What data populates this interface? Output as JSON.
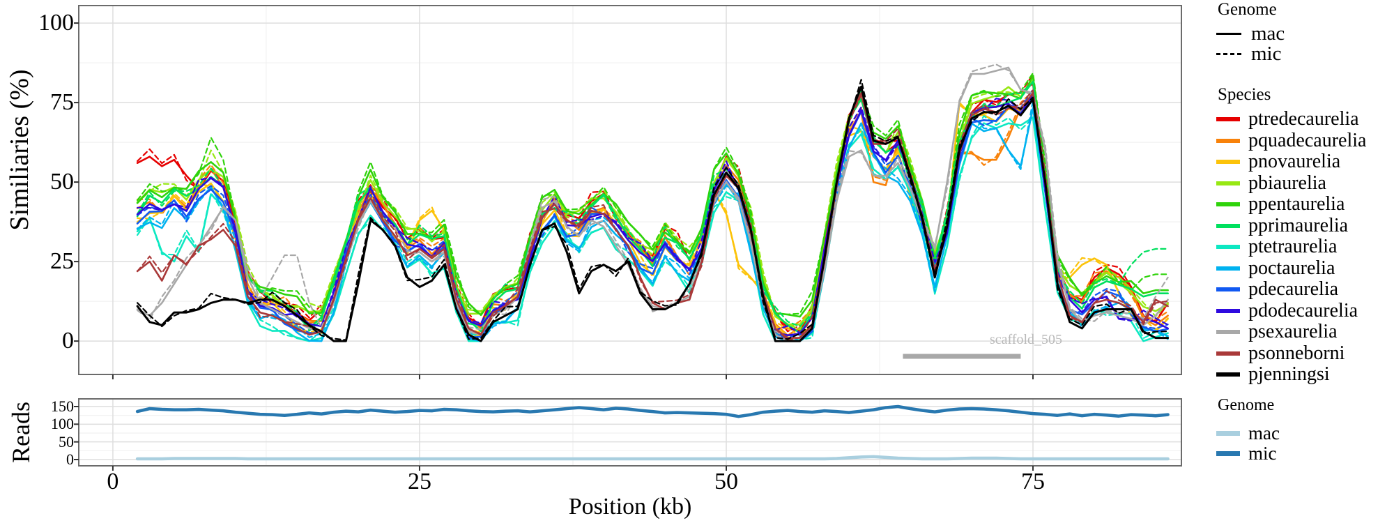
{
  "ui": {
    "y_axis_title": "Similiaries (%)",
    "reads_axis_title": "Reads",
    "x_axis_title": "Position (kb)",
    "scaffold_label": "scaffold_505",
    "legend_genome_top": {
      "title": "Genome",
      "items": [
        {
          "label": "mac",
          "linetype": "solid"
        },
        {
          "label": "mic",
          "linetype": "dashed"
        }
      ]
    },
    "legend_species_title": "Species",
    "legend_genome_bottom": {
      "title": "Genome",
      "items": [
        {
          "label": "mac",
          "color": "#a9cfdf"
        },
        {
          "label": "mic",
          "color": "#2878b0"
        }
      ]
    },
    "colors": {
      "grid_major": "#dedede",
      "grid_minor": "#f1f1f1",
      "panel_border": "#6b6b6b",
      "tick": "#333333",
      "scaffold_bar": "#a8a8a8",
      "scaffold_text": "#b9b9b9"
    }
  },
  "chart_data": [
    {
      "type": "line",
      "title": "",
      "xlabel": "Position (kb)",
      "ylabel": "Similiaries (%)",
      "xlim": [
        -2.78,
        87.1
      ],
      "ylim": [
        -10.5,
        105.5
      ],
      "x_major": [
        0,
        25,
        50,
        75
      ],
      "x_minor": [
        12.5,
        37.5,
        62.5
      ],
      "y_major": [
        0,
        25,
        50,
        75,
        100
      ],
      "y_minor": [
        12.5,
        37.5,
        62.5,
        87.5
      ],
      "y_tick_labels": [
        "100",
        "75",
        "50",
        "25",
        "0"
      ],
      "x_tick_labels": [
        "0",
        "25",
        "50",
        "75"
      ],
      "grid": true,
      "legend_position": "right",
      "x_start": 2,
      "x_step": 1,
      "n": 85,
      "base": [
        38,
        42,
        40,
        44,
        41,
        46,
        50,
        46,
        33,
        16,
        11,
        10,
        8,
        6,
        3,
        4,
        14,
        27,
        39,
        46,
        39,
        34,
        28,
        30,
        27,
        30,
        14,
        4,
        2,
        9,
        11,
        13,
        27,
        37,
        41,
        35,
        34,
        39,
        41,
        36,
        31,
        26,
        22,
        30,
        26,
        22,
        30,
        46,
        52,
        47,
        33,
        14,
        4,
        1,
        1,
        6,
        26,
        48,
        65,
        72,
        60,
        56,
        60,
        50,
        38,
        21,
        35,
        58,
        70,
        72,
        71,
        73,
        72,
        77,
        48,
        20,
        12,
        9,
        13,
        15,
        14,
        12,
        6,
        5,
        6
      ],
      "genomes": [
        {
          "name": "mac",
          "linetype": "solid"
        },
        {
          "name": "mic",
          "linetype": "dashed"
        }
      ],
      "series": [
        {
          "name": "ptredecaurelia",
          "color": "#e60000",
          "offset": 4,
          "mac_ov": {
            "2": 56,
            "3": 58,
            "4": 55,
            "5": 57,
            "6": 52,
            "50": 58,
            "61": 76,
            "80": 20,
            "81": 23,
            "82": 21,
            "83": 17,
            "84": 8,
            "85": 6,
            "86": 12
          }
        },
        {
          "name": "pquadecaurelia",
          "color": "#f8820a",
          "offset": 2,
          "mac_ov": {
            "62": 50,
            "63": 49,
            "70": 59,
            "71": 57,
            "72": 57,
            "73": 64,
            "80": 19,
            "81": 22,
            "82": 20,
            "83": 16,
            "84": 7,
            "85": 5,
            "86": 8
          }
        },
        {
          "name": "pnovaurelia",
          "color": "#fcc30a",
          "offset": 0,
          "mac_ov": {
            "25": 38,
            "26": 41,
            "27": 35,
            "49": 47,
            "50": 40,
            "51": 24,
            "52": 20,
            "61": 66,
            "62": 58,
            "63": 54,
            "64": 60,
            "65": 45,
            "69": 75,
            "78": 20,
            "79": 24,
            "80": 26,
            "81": 24,
            "82": 15,
            "83": 8,
            "84": 4,
            "85": 3,
            "86": 7
          }
        },
        {
          "name": "pbiaurelia",
          "color": "#97e813",
          "offset": 5,
          "mic_ov": {
            "8": 60
          }
        },
        {
          "name": "ppentaurelia",
          "color": "#2fd30b",
          "offset": 6,
          "mac_ov": {
            "84": 15,
            "85": 16,
            "86": 16
          },
          "mic_ov": {
            "8": 64,
            "9": 57,
            "83": 16,
            "84": 20,
            "85": 21,
            "86": 21
          }
        },
        {
          "name": "pprimaurelia",
          "color": "#00e05e",
          "offset": 3,
          "mac_ov": {
            "84": 14,
            "85": 15,
            "86": 15
          },
          "mic_ov": {
            "45": 36,
            "82": 18,
            "83": 24,
            "84": 28,
            "85": 29,
            "86": 29
          }
        },
        {
          "name": "ptetraurelia",
          "color": "#0de8c2",
          "offset": -5,
          "mac_ov": {
            "4": 28,
            "5": 25,
            "6": 33,
            "7": 28
          }
        },
        {
          "name": "poctaurelia",
          "color": "#00b2f0",
          "offset": -3,
          "mac_ov": {
            "63": 52,
            "64": 50,
            "65": 44,
            "71": 66,
            "72": 67,
            "73": 60,
            "74": 55
          }
        },
        {
          "name": "pdecaurelia",
          "color": "#1159f2",
          "offset": -1
        },
        {
          "name": "pdodecaurelia",
          "color": "#2e0adf",
          "offset": 1,
          "mac_ov": {
            "78": 13,
            "79": 9,
            "80": 13,
            "81": 14,
            "82": 7,
            "83": 7,
            "84": 7,
            "85": 6,
            "86": 4
          }
        },
        {
          "name": "psexaurelia",
          "color": "#a8a8a8",
          "values": [
            10,
            8,
            12,
            18,
            24,
            30,
            36,
            42,
            38,
            20,
            12,
            10,
            8,
            6,
            4,
            3,
            12,
            25,
            37,
            44,
            38,
            33,
            27,
            28,
            25,
            28,
            12,
            3,
            2,
            8,
            10,
            14,
            30,
            42,
            44,
            36,
            33,
            38,
            36,
            30,
            24,
            16,
            11,
            10,
            12,
            14,
            26,
            44,
            50,
            45,
            31,
            12,
            2,
            0,
            0,
            4,
            22,
            44,
            58,
            60,
            52,
            52,
            56,
            48,
            38,
            29,
            50,
            75,
            84,
            84,
            85,
            86,
            79,
            78,
            60,
            25,
            10,
            6,
            8,
            9,
            8,
            7,
            5,
            8,
            13
          ],
          "mic_ov": {
            "13": 20,
            "14": 27,
            "15": 27,
            "16": 12,
            "85": 14,
            "86": 20
          }
        },
        {
          "name": "psonneborni",
          "color": "#a93939",
          "values": [
            22,
            25,
            19,
            27,
            24,
            30,
            32,
            35,
            30,
            14,
            9,
            8,
            6,
            4,
            2,
            3,
            13,
            26,
            38,
            45,
            38,
            33,
            27,
            29,
            26,
            29,
            13,
            4,
            2,
            9,
            11,
            14,
            28,
            39,
            43,
            38,
            36,
            41,
            40,
            35,
            30,
            20,
            12,
            10,
            12,
            13,
            25,
            45,
            52,
            48,
            34,
            15,
            4,
            1,
            1,
            5,
            25,
            49,
            70,
            78,
            62,
            62,
            64,
            52,
            39,
            22,
            36,
            59,
            71,
            73,
            72,
            74,
            73,
            78,
            50,
            21,
            8,
            6,
            12,
            13,
            12,
            10,
            6,
            13,
            11
          ]
        },
        {
          "name": "pjenningsi",
          "color": "#000000",
          "values": [
            11,
            6,
            5,
            9,
            9,
            10,
            12,
            13,
            13,
            12,
            13,
            13,
            11,
            8,
            5,
            3,
            0,
            0,
            18,
            38,
            35,
            30,
            20,
            17,
            19,
            24,
            10,
            2,
            0,
            6,
            8,
            10,
            24,
            35,
            37,
            28,
            15,
            22,
            24,
            22,
            25,
            15,
            10,
            10,
            12,
            18,
            28,
            46,
            53,
            48,
            35,
            14,
            0,
            0,
            0,
            4,
            26,
            50,
            70,
            80,
            63,
            62,
            64,
            52,
            38,
            20,
            36,
            60,
            70,
            72,
            72,
            74,
            71,
            76,
            50,
            18,
            6,
            4,
            9,
            10,
            10,
            10,
            3,
            1,
            1
          ]
        }
      ],
      "annotation": {
        "label": "scaffold_505",
        "bar_x1": 64.4,
        "bar_x2": 74.0,
        "bar_y": -4.8,
        "label_x": 74.4,
        "label_y": -1.5
      }
    },
    {
      "type": "line",
      "ylabel": "Reads",
      "xlim": [
        -2.78,
        87.1
      ],
      "ylim": [
        -17.8,
        171.7
      ],
      "y_major": [
        0,
        50,
        100,
        150
      ],
      "y_minor": [
        25,
        75,
        125
      ],
      "y_tick_labels": [
        "150",
        "100",
        "50",
        "0"
      ],
      "grid": true,
      "x_start": 2,
      "x_step": 1,
      "n": 85,
      "series": [
        {
          "name": "mic",
          "color": "#2878b0",
          "values": [
            136,
            144,
            142,
            141,
            141,
            142,
            140,
            138,
            134,
            131,
            128,
            127,
            125,
            128,
            132,
            129,
            134,
            137,
            135,
            140,
            137,
            134,
            136,
            139,
            138,
            142,
            141,
            138,
            136,
            135,
            137,
            138,
            135,
            138,
            141,
            144,
            147,
            144,
            141,
            145,
            143,
            139,
            136,
            132,
            133,
            132,
            131,
            130,
            128,
            122,
            127,
            134,
            137,
            139,
            136,
            134,
            138,
            136,
            133,
            137,
            141,
            147,
            150,
            144,
            139,
            135,
            140,
            143,
            144,
            143,
            141,
            138,
            134,
            130,
            128,
            125,
            129,
            124,
            128,
            126,
            123,
            127,
            126,
            124,
            127
          ]
        },
        {
          "name": "mac",
          "color": "#a9cfdf",
          "values": [
            2,
            2,
            2,
            3,
            3,
            3,
            3,
            3,
            3,
            2,
            2,
            2,
            2,
            2,
            2,
            2,
            2,
            2,
            2,
            2,
            2,
            2,
            2,
            2,
            2,
            2,
            2,
            2,
            2,
            2,
            2,
            2,
            2,
            2,
            2,
            2,
            2,
            2,
            2,
            2,
            2,
            2,
            2,
            2,
            2,
            2,
            2,
            2,
            2,
            2,
            2,
            2,
            2,
            2,
            2,
            2,
            2,
            3,
            5,
            7,
            8,
            6,
            4,
            3,
            2,
            2,
            2,
            3,
            4,
            4,
            4,
            3,
            2,
            2,
            2,
            2,
            2,
            2,
            2,
            2,
            2,
            2,
            2,
            2,
            2
          ]
        }
      ]
    }
  ]
}
